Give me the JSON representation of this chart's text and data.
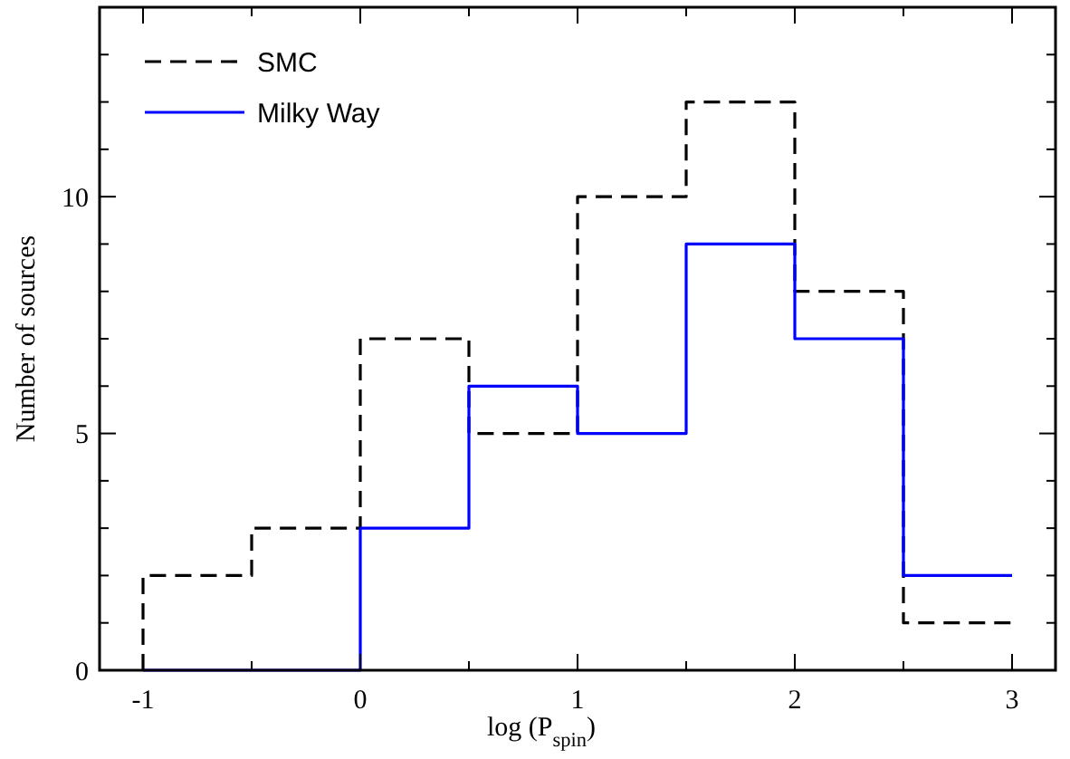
{
  "chart_data": {
    "type": "histogram",
    "xlabel": "log (P$_{spin}$)",
    "ylabel": "Number of sources",
    "bins": [
      -1,
      -0.5,
      0,
      0.5,
      1,
      1.5,
      2,
      2.5,
      3
    ],
    "series": [
      {
        "name": "SMC",
        "color": "#000000",
        "line_style": "dashed",
        "values": [
          2,
          3,
          7,
          5,
          10,
          12,
          8,
          1
        ]
      },
      {
        "name": "Milky Way",
        "color": "#0000ff",
        "line_style": "solid",
        "values": [
          0,
          0,
          3,
          6,
          5,
          9,
          7,
          2
        ]
      }
    ],
    "xlim": [
      -1.2,
      3.2
    ],
    "xticks": [
      -1,
      {
        "value": -0.5,
        "label": null
      },
      0,
      {
        "value": 0.5,
        "label": null
      },
      1,
      {
        "value": 1.5,
        "label": null
      },
      2,
      {
        "value": 2.5,
        "label": null
      },
      3
    ],
    "ylim": [
      0,
      14
    ],
    "yticks": [
      0,
      {
        "value": 1,
        "label": null
      },
      {
        "value": 2,
        "label": null
      },
      {
        "value": 3,
        "label": null
      },
      {
        "value": 4,
        "label": null
      },
      5,
      {
        "value": 6,
        "label": null
      },
      {
        "value": 7,
        "label": null
      },
      {
        "value": 8,
        "label": null
      },
      {
        "value": 9,
        "label": null
      },
      10,
      {
        "value": 11,
        "label": null
      },
      {
        "value": 12,
        "label": null
      },
      {
        "value": 13,
        "label": null
      }
    ],
    "grid": false,
    "legend": "top left"
  }
}
